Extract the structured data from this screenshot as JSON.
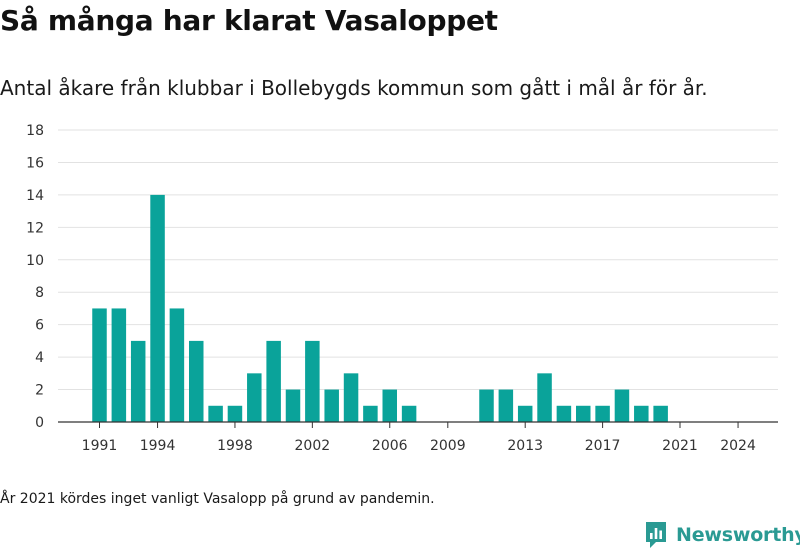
{
  "title": "Så många har klarat Vasaloppet",
  "subtitle": "Antal åkare från klubbar i Bollebygds kommun som gått i mål år för år.",
  "note": "År 2021 kördes inget vanligt Vasalopp på grund av pandemin.",
  "brand": {
    "name": "Newsworthy",
    "icon": "newsworthy-logo-icon",
    "color": "#2a9a93"
  },
  "chart_data": {
    "type": "bar",
    "x": [
      1991,
      1992,
      1993,
      1994,
      1995,
      1996,
      1997,
      1998,
      1999,
      2000,
      2001,
      2002,
      2003,
      2004,
      2005,
      2006,
      2007,
      2008,
      2009,
      2010,
      2011,
      2012,
      2013,
      2014,
      2015,
      2016,
      2017,
      2018,
      2019,
      2020,
      2021,
      2022,
      2023,
      2024
    ],
    "values": [
      7,
      7,
      5,
      14,
      7,
      5,
      1,
      1,
      3,
      5,
      2,
      5,
      2,
      3,
      1,
      2,
      1,
      0,
      0,
      0,
      2,
      2,
      1,
      3,
      1,
      1,
      1,
      2,
      1,
      1,
      0,
      0,
      0,
      0
    ],
    "x_tick_labels": [
      1991,
      1994,
      1998,
      2002,
      2006,
      2009,
      2013,
      2017,
      2021,
      2024
    ],
    "y_ticks": [
      0,
      2,
      4,
      6,
      8,
      10,
      12,
      14,
      16,
      18
    ],
    "ylim": [
      0,
      18
    ],
    "xlabel": "",
    "ylabel": "",
    "bar_color": "#0aa39a",
    "grid": true
  }
}
